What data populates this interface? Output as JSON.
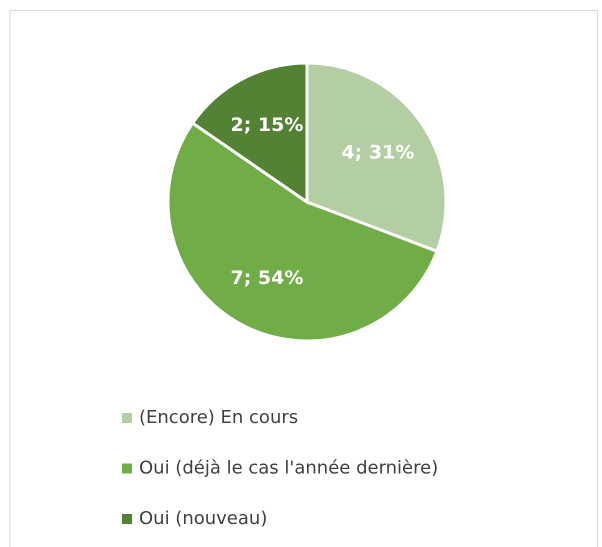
{
  "chart_data": {
    "type": "pie",
    "categories": [
      "(Encore) En cours",
      "Oui (déjà le cas l'année dernière)",
      "Oui (nouveau)"
    ],
    "values": [
      4,
      7,
      2
    ],
    "value_labels": [
      "4; 31%",
      "7; 54%",
      "2; 15%"
    ],
    "colors": [
      "#b4cea3",
      "#70ad47",
      "#548235"
    ],
    "legend": "bottom"
  }
}
